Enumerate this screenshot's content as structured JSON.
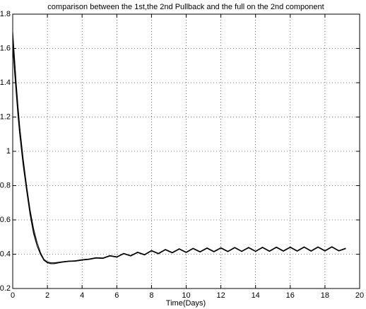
{
  "chart_data": {
    "type": "line",
    "title": "comparison between the 1st,the 2nd Pullback and the full on the 2nd component",
    "xlabel": "Time(Days)",
    "x": [
      0,
      0.1,
      0.2,
      0.3,
      0.4,
      0.6,
      0.8,
      1.0,
      1.2,
      1.4,
      1.6,
      1.8,
      2.0,
      2.2,
      2.4,
      2.8,
      3.2,
      3.6,
      4.0,
      4.4,
      4.8,
      5.2,
      5.6,
      6.0,
      6.4,
      6.8,
      7.2,
      7.6,
      8.0,
      8.4,
      8.8,
      9.2,
      9.6,
      10.0,
      10.4,
      10.8,
      11.2,
      11.6,
      12.0,
      12.4,
      12.8,
      13.2,
      13.6,
      14.0,
      14.4,
      14.8,
      15.2,
      15.6,
      16.0,
      16.4,
      16.8,
      17.2,
      17.6,
      18.0,
      18.4,
      18.8,
      19.2
    ],
    "series": [
      {
        "color": "#000000",
        "values": [
          1.7,
          1.55,
          1.4,
          1.27,
          1.15,
          0.96,
          0.8,
          0.66,
          0.55,
          0.47,
          0.41,
          0.37,
          0.355,
          0.35,
          0.35,
          0.355,
          0.36,
          0.362,
          0.368,
          0.372,
          0.38,
          0.378,
          0.392,
          0.385,
          0.405,
          0.392,
          0.412,
          0.398,
          0.422,
          0.405,
          0.428,
          0.41,
          0.432,
          0.412,
          0.435,
          0.415,
          0.437,
          0.416,
          0.438,
          0.417,
          0.44,
          0.418,
          0.44,
          0.418,
          0.441,
          0.419,
          0.442,
          0.42,
          0.442,
          0.42,
          0.443,
          0.42,
          0.443,
          0.421,
          0.444,
          0.421,
          0.435
        ]
      },
      {
        "color": "#000000",
        "values": [
          1.65,
          1.5,
          1.36,
          1.23,
          1.11,
          0.93,
          0.78,
          0.64,
          0.53,
          0.45,
          0.4,
          0.365,
          0.35,
          0.345,
          0.345,
          0.352,
          0.357,
          0.359,
          0.365,
          0.369,
          0.377,
          0.375,
          0.389,
          0.382,
          0.402,
          0.389,
          0.409,
          0.395,
          0.419,
          0.402,
          0.425,
          0.407,
          0.429,
          0.409,
          0.432,
          0.412,
          0.434,
          0.413,
          0.435,
          0.414,
          0.437,
          0.415,
          0.437,
          0.415,
          0.438,
          0.416,
          0.439,
          0.417,
          0.439,
          0.417,
          0.44,
          0.417,
          0.44,
          0.418,
          0.441,
          0.418,
          0.432
        ]
      },
      {
        "color": "#000000",
        "values": [
          1.62,
          1.47,
          1.34,
          1.21,
          1.1,
          0.92,
          0.77,
          0.63,
          0.52,
          0.45,
          0.4,
          0.365,
          0.35,
          0.345,
          0.345,
          0.355,
          0.36,
          0.362,
          0.368,
          0.372,
          0.38,
          0.378,
          0.392,
          0.385,
          0.405,
          0.392,
          0.412,
          0.398,
          0.422,
          0.405,
          0.428,
          0.41,
          0.432,
          0.412,
          0.435,
          0.415,
          0.437,
          0.416,
          0.438,
          0.417,
          0.44,
          0.418,
          0.44,
          0.418,
          0.441,
          0.419,
          0.442,
          0.42,
          0.442,
          0.42,
          0.443,
          0.42,
          0.443,
          0.421,
          0.444,
          0.421,
          0.435
        ]
      }
    ],
    "xlim": [
      0,
      20
    ],
    "xticks": [
      0,
      2,
      4,
      6,
      8,
      10,
      12,
      14,
      16,
      18,
      20
    ],
    "ylim": [
      0.2,
      1.8
    ],
    "yticks": [
      0.2,
      0.4,
      0.6,
      0.8,
      1,
      1.2,
      1.4,
      1.6,
      1.8
    ],
    "grid": true
  }
}
